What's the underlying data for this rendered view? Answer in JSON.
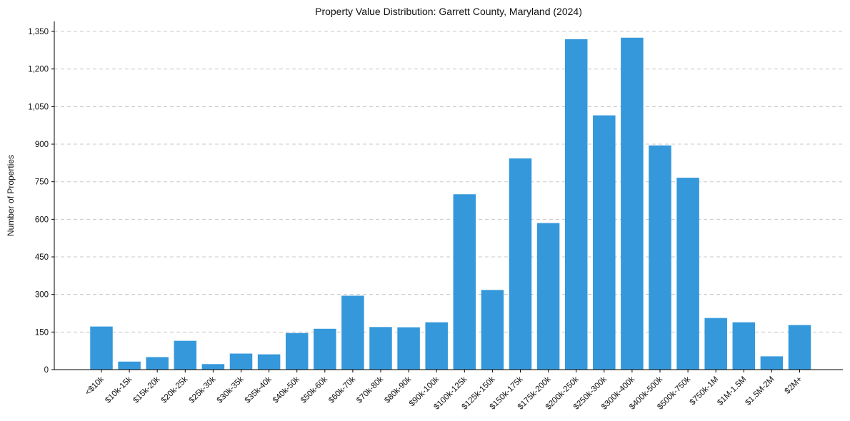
{
  "chart_data": {
    "type": "bar",
    "title": "Property Value Distribution: Garrett County, Maryland (2024)",
    "xlabel": "",
    "ylabel": "Number of Properties",
    "ylim": [
      0,
      1390
    ],
    "yticks": [
      0,
      150,
      300,
      450,
      600,
      750,
      900,
      1050,
      1200,
      1350
    ],
    "ytick_labels": [
      "0",
      "150",
      "300",
      "450",
      "600",
      "750",
      "900",
      "1,050",
      "1,200",
      "1,350"
    ],
    "grid": "y-dashed",
    "bar_color": "#3498db",
    "categories": [
      "<$10k",
      "$10k-15k",
      "$15k-20k",
      "$20k-25k",
      "$25k-30k",
      "$30k-35k",
      "$35k-40k",
      "$40k-50k",
      "$50k-60k",
      "$60k-70k",
      "$70k-80k",
      "$80k-90k",
      "$90k-100k",
      "$100k-125k",
      "$125k-150k",
      "$150k-175k",
      "$175k-200k",
      "$200k-250k",
      "$250k-300k",
      "$300k-400k",
      "$400k-500k",
      "$500k-750k",
      "$750k-1M",
      "$1M-1.5M",
      "$1.5M-2M",
      "$2M+"
    ],
    "values": [
      172,
      32,
      50,
      115,
      22,
      64,
      61,
      146,
      163,
      295,
      170,
      169,
      189,
      700,
      318,
      843,
      585,
      1319,
      1015,
      1325,
      895,
      766,
      206,
      189,
      53,
      178
    ]
  }
}
